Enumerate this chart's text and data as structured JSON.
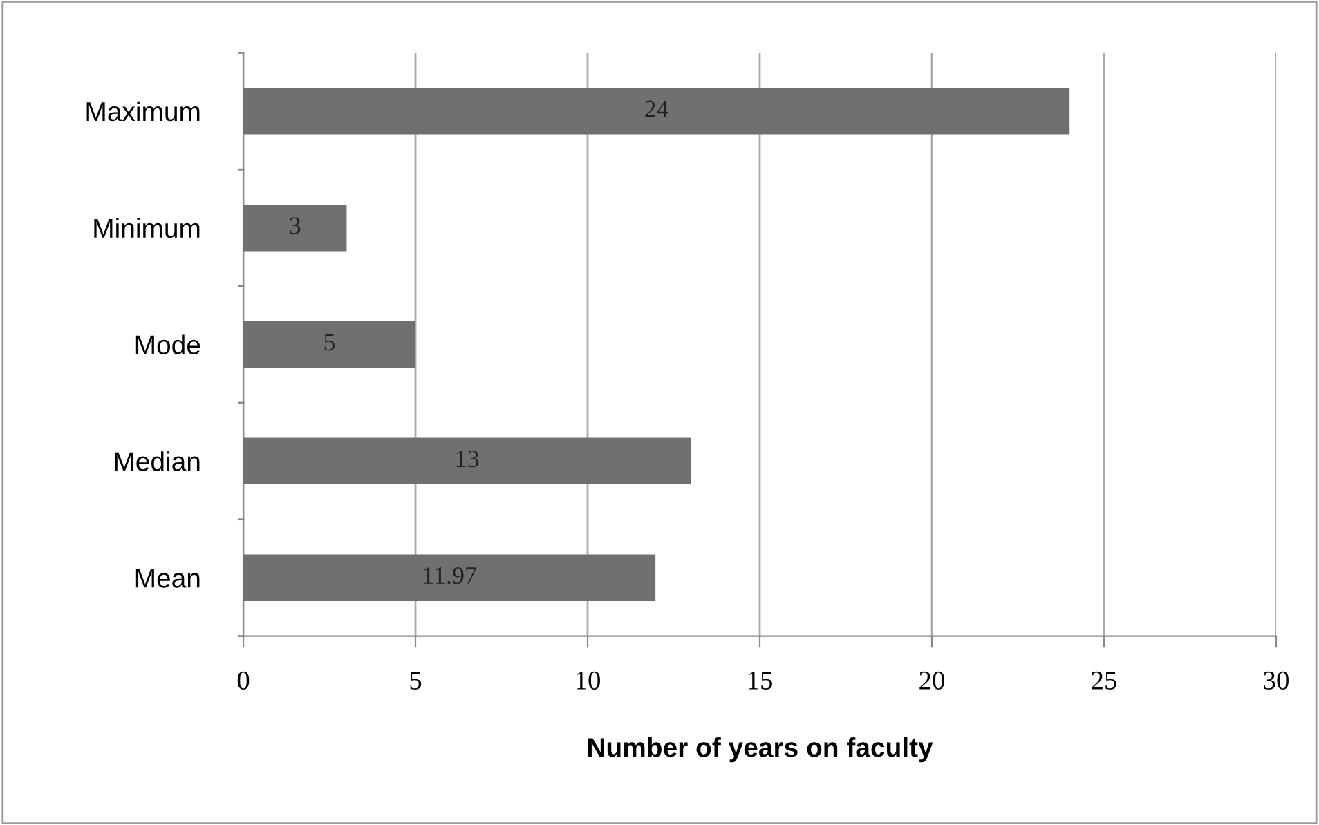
{
  "chart_data": {
    "type": "bar",
    "orientation": "horizontal",
    "categories": [
      "Maximum",
      "Minimum",
      "Mode",
      "Median",
      "Mean"
    ],
    "values": [
      24,
      3,
      5,
      13,
      11.97
    ],
    "color": "#707070",
    "xlabel": "Number of years on faculty",
    "xlim": [
      0,
      30
    ],
    "xticks": [
      0,
      5,
      10,
      15,
      20,
      25,
      30
    ],
    "grid": "x",
    "data_labels": true
  }
}
